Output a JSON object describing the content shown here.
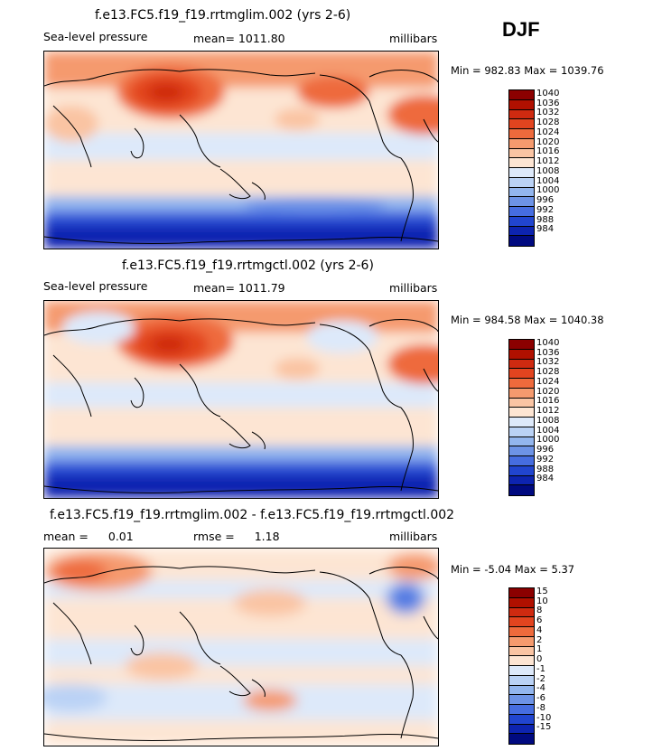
{
  "season": "DJF",
  "units": "millibars",
  "panels": [
    {
      "title": "f.e13.FC5.f19_f19.rrtmglim.002 (yrs 2-6)",
      "left_label": "Sea-level pressure",
      "mean_label": "mean=",
      "mean_value": "1011.80",
      "units": "millibars",
      "min_label": "Min =",
      "min_value": "982.83",
      "max_label": "Max =",
      "max_value": "1039.76",
      "levels": [
        "1040",
        "1036",
        "1032",
        "1028",
        "1024",
        "1020",
        "1016",
        "1012",
        "1008",
        "1004",
        "1000",
        "996",
        "992",
        "988",
        "984"
      ],
      "colors": [
        "#8b0000",
        "#b01000",
        "#cf2a10",
        "#e2441f",
        "#ee6a3c",
        "#f59a6e",
        "#fac4a3",
        "#fde5d3",
        "#dde9fa",
        "#bad2f5",
        "#93b6ee",
        "#6d93e6",
        "#466de0",
        "#2145cf",
        "#0d24b0",
        "#000a80"
      ]
    },
    {
      "title": "f.e13.FC5.f19_f19.rrtmgctl.002 (yrs 2-6)",
      "left_label": "Sea-level pressure",
      "mean_label": "mean=",
      "mean_value": "1011.79",
      "units": "millibars",
      "min_label": "Min =",
      "min_value": "984.58",
      "max_label": "Max =",
      "max_value": "1040.38",
      "levels": [
        "1040",
        "1036",
        "1032",
        "1028",
        "1024",
        "1020",
        "1016",
        "1012",
        "1008",
        "1004",
        "1000",
        "996",
        "992",
        "988",
        "984"
      ],
      "colors": [
        "#8b0000",
        "#b01000",
        "#cf2a10",
        "#e2441f",
        "#ee6a3c",
        "#f59a6e",
        "#fac4a3",
        "#fde5d3",
        "#dde9fa",
        "#bad2f5",
        "#93b6ee",
        "#6d93e6",
        "#466de0",
        "#2145cf",
        "#0d24b0",
        "#000a80"
      ]
    },
    {
      "title": "f.e13.FC5.f19_f19.rrtmglim.002 - f.e13.FC5.f19_f19.rrtmgctl.002",
      "mean_label": "mean =",
      "mean_value": "0.01",
      "rmse_label": "rmse =",
      "rmse_value": "1.18",
      "units": "millibars",
      "min_label": "Min =",
      "min_value": "-5.04",
      "max_label": "Max =",
      "max_value": "5.37",
      "levels": [
        "15",
        "10",
        "8",
        "6",
        "4",
        "2",
        "1",
        "0",
        "-1",
        "-2",
        "-4",
        "-6",
        "-8",
        "-10",
        "-15"
      ],
      "colors": [
        "#8b0000",
        "#b01000",
        "#cf2a10",
        "#e2441f",
        "#ee6a3c",
        "#f59a6e",
        "#fac4a3",
        "#fde5d3",
        "#dde9fa",
        "#bad2f5",
        "#93b6ee",
        "#6d93e6",
        "#466de0",
        "#2145cf",
        "#0d24b0",
        "#000a80"
      ]
    }
  ]
}
